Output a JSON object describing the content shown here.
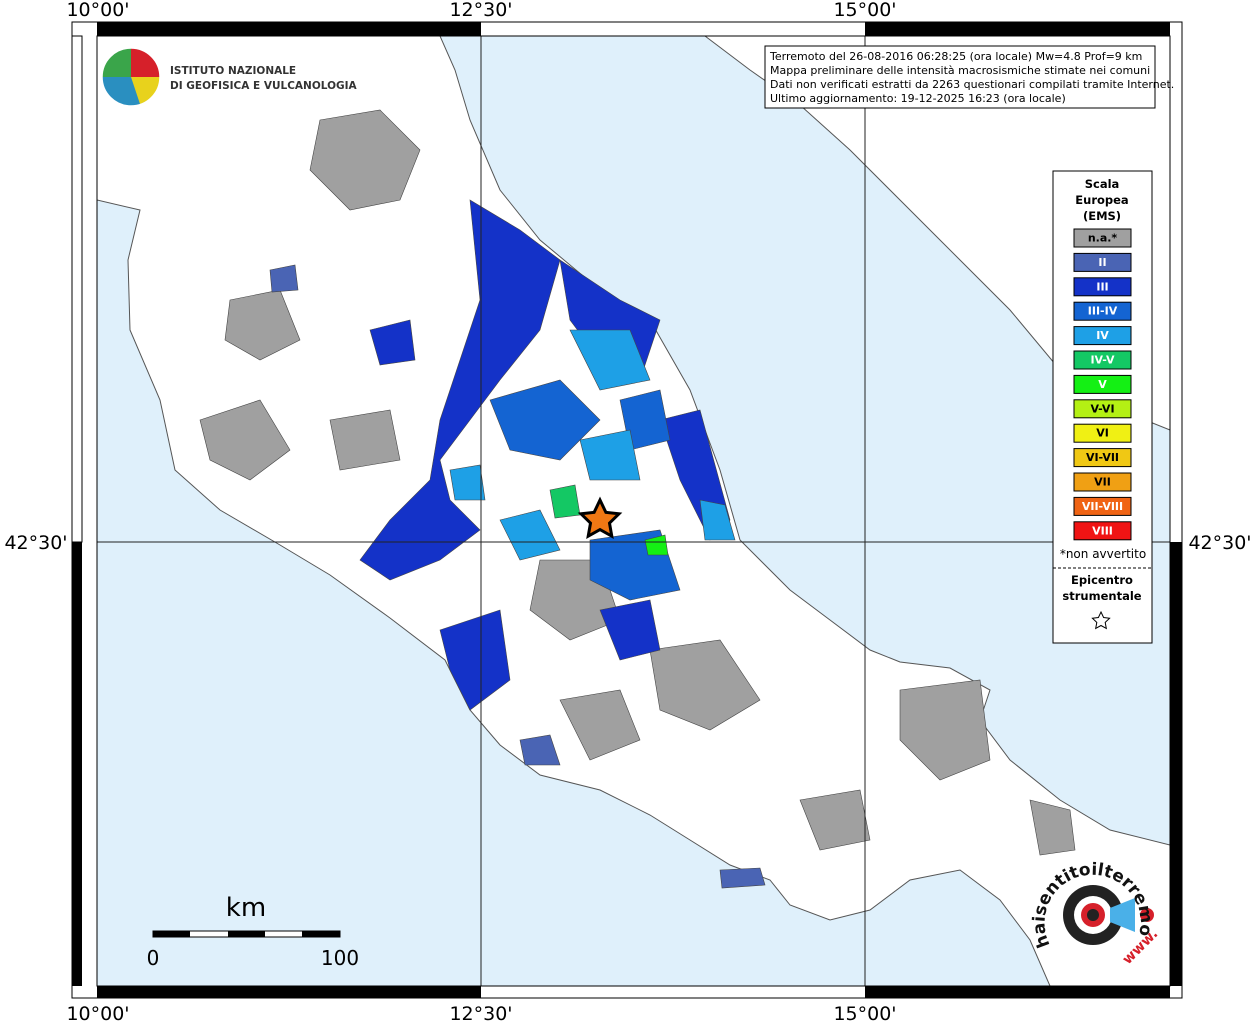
{
  "institute": {
    "line1": "ISTITUTO NAZIONALE",
    "line2": "DI GEOFISICA E VULCANOLOGIA"
  },
  "info_box": [
    "Terremoto del 26-08-2016 06:28:25 (ora locale) Mw=4.8 Prof=9 km",
    "Mappa preliminare delle intensità macrosismiche stimate nei comuni",
    "Dati non verificati estratti da 2263 questionari compilati tramite Internet.",
    "Ultimo aggiornamento: 19-12-2025 16:23 (ora locale)"
  ],
  "axes": {
    "top": [
      "10°00'",
      "12°30'",
      "15°00'"
    ],
    "bottom": [
      "10°00'",
      "12°30'",
      "15°00'"
    ],
    "left": [
      "42°30'"
    ],
    "right": [
      "42°30'"
    ]
  },
  "legend": {
    "title_lines": [
      "Scala",
      "Europea",
      "(EMS)"
    ],
    "items": [
      {
        "label": "n.a.*",
        "color": "#a0a0a0"
      },
      {
        "label": "II",
        "color": "#4a64b4"
      },
      {
        "label": "III",
        "color": "#1432c8"
      },
      {
        "label": "III-IV",
        "color": "#1464d2"
      },
      {
        "label": "IV",
        "color": "#1ea0e6"
      },
      {
        "label": "IV-V",
        "color": "#14c864"
      },
      {
        "label": "V",
        "color": "#14f014"
      },
      {
        "label": "V-VI",
        "color": "#b4f014"
      },
      {
        "label": "VI",
        "color": "#f0f014"
      },
      {
        "label": "VI-VII",
        "color": "#f0c814"
      },
      {
        "label": "VII",
        "color": "#f0a014"
      },
      {
        "label": "VII-VIII",
        "color": "#f06414"
      },
      {
        "label": "VIII",
        "color": "#f01414"
      }
    ],
    "note": "*non avvertito",
    "epicenter_lines": [
      "Epicentro",
      "strumentale"
    ]
  },
  "scale_bar": {
    "unit": "km",
    "labels": [
      "0",
      "100"
    ]
  },
  "watermark": {
    "site": "haisentitoilterremoto.it",
    "prefix": "www."
  }
}
